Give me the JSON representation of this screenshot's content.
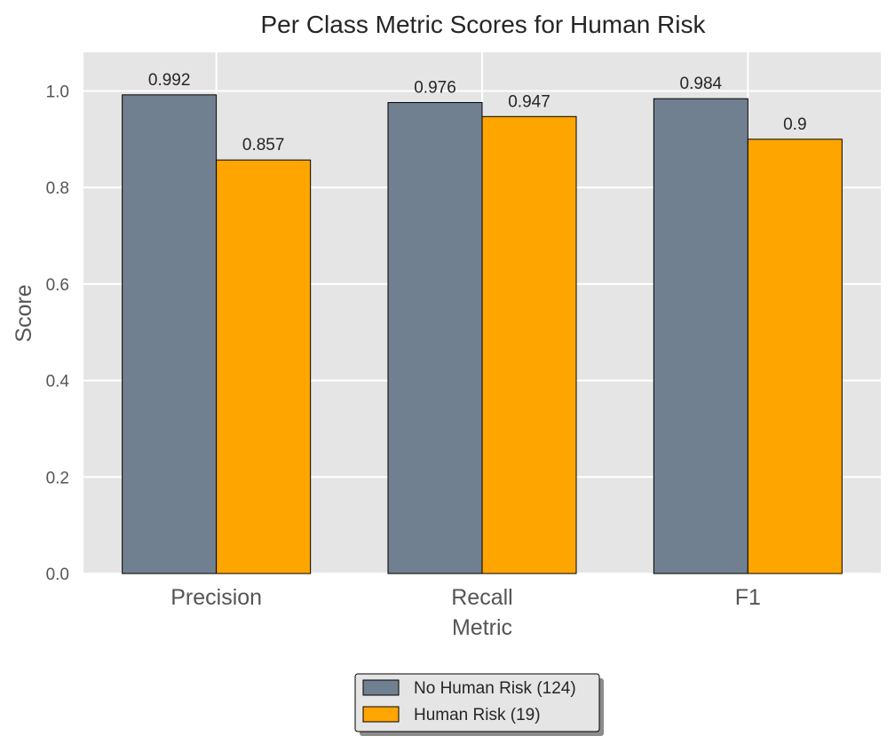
{
  "chart_data": {
    "type": "bar",
    "title": "Per Class Metric Scores for Human Risk",
    "xlabel": "Metric",
    "ylabel": "Score",
    "categories": [
      "Precision",
      "Recall",
      "F1"
    ],
    "series": [
      {
        "name": "No Human Risk (124)",
        "values": [
          0.992,
          0.976,
          0.984
        ],
        "labels": [
          "0.992",
          "0.976",
          "0.984"
        ],
        "color": "#708090"
      },
      {
        "name": "Human Risk (19)",
        "values": [
          0.857,
          0.947,
          0.9
        ],
        "labels": [
          "0.857",
          "0.947",
          "0.9"
        ],
        "color": "#ffa500"
      }
    ],
    "ylim": [
      0,
      1.08
    ],
    "yticks": [
      0.0,
      0.2,
      0.4,
      0.6,
      0.8,
      1.0
    ],
    "ytick_labels": [
      "0.0",
      "0.2",
      "0.4",
      "0.6",
      "0.8",
      "1.0"
    ],
    "grid": true,
    "legend": "bottom-center",
    "colors": {
      "plot_background": "#e5e5e5",
      "grid": "#ffffff",
      "bar_edge": "#000000"
    }
  }
}
